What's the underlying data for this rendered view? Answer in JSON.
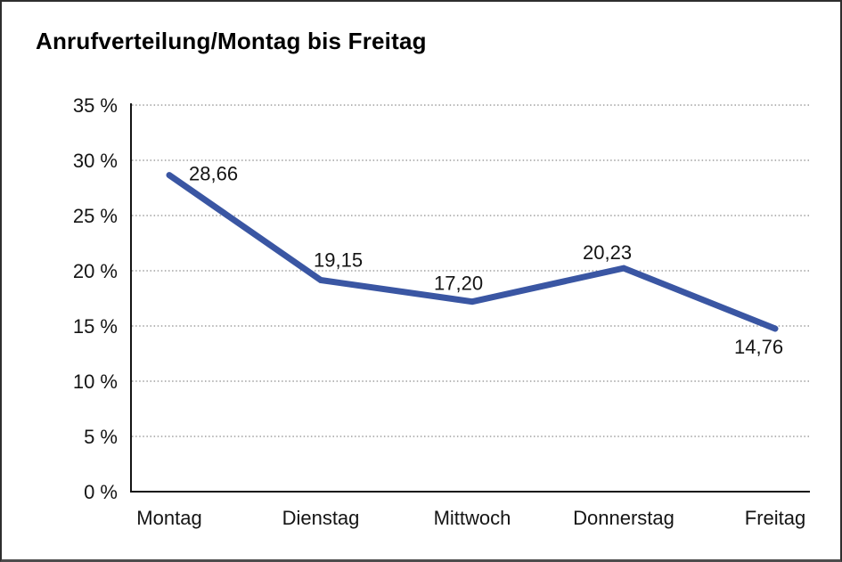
{
  "chart_data": {
    "type": "line",
    "title": "Anrufverteilung/Montag bis Freitag",
    "categories": [
      "Montag",
      "Dienstag",
      "Mittwoch",
      "Donnerstag",
      "Freitag"
    ],
    "values": [
      28.66,
      19.15,
      17.2,
      20.23,
      14.76
    ],
    "point_labels": [
      "28,66",
      "19,15",
      "17,20",
      "20,23",
      "14,76"
    ],
    "xlabel": "",
    "ylabel": "",
    "ylim": [
      0,
      35
    ],
    "y_tick_step": 5,
    "y_ticks": [
      {
        "value": 0,
        "label": "0 %"
      },
      {
        "value": 5,
        "label": "5 %"
      },
      {
        "value": 10,
        "label": "10 %"
      },
      {
        "value": 15,
        "label": "15 %"
      },
      {
        "value": 20,
        "label": "20 %"
      },
      {
        "value": 25,
        "label": "25 %"
      },
      {
        "value": 30,
        "label": "30 %"
      },
      {
        "value": 35,
        "label": "35 %"
      }
    ],
    "grid": "horizontal-dotted",
    "legend": "none",
    "markers": "none",
    "decimal_separator": ","
  },
  "colors": {
    "series_line": "#3A56A3",
    "gridline": "#8C8C8C",
    "axis": "#141414",
    "tick_text": "#141414",
    "data_label_text": "#141414",
    "title_text": "#000000",
    "background": "#FFFFFF",
    "frame_border": "#2E2E2E"
  }
}
